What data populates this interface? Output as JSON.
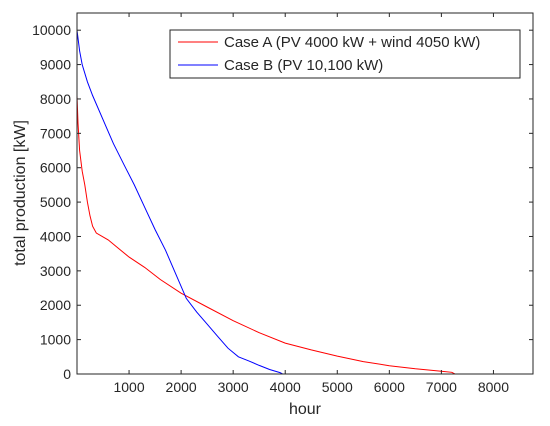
{
  "chart_data": {
    "type": "line",
    "xlabel": "hour",
    "ylabel": "total production [kW]",
    "xlim": [
      0,
      8760
    ],
    "ylim": [
      0,
      10500
    ],
    "x_ticks": [
      1000,
      2000,
      3000,
      4000,
      5000,
      6000,
      7000,
      8000
    ],
    "y_ticks": [
      0,
      1000,
      2000,
      3000,
      4000,
      5000,
      6000,
      7000,
      8000,
      9000,
      10000
    ],
    "grid": false,
    "legend_position": "top-right",
    "series": [
      {
        "name": "Case A (PV 4000 kW + wind 4050 kW)",
        "color": "#ff0000",
        "points": [
          [
            0,
            8100
          ],
          [
            20,
            7300
          ],
          [
            50,
            6500
          ],
          [
            100,
            5900
          ],
          [
            150,
            5500
          ],
          [
            200,
            5000
          ],
          [
            250,
            4600
          ],
          [
            300,
            4300
          ],
          [
            370,
            4100
          ],
          [
            600,
            3900
          ],
          [
            800,
            3650
          ],
          [
            1000,
            3400
          ],
          [
            1300,
            3100
          ],
          [
            1600,
            2750
          ],
          [
            2000,
            2350
          ],
          [
            2500,
            1950
          ],
          [
            3000,
            1550
          ],
          [
            3500,
            1200
          ],
          [
            4000,
            900
          ],
          [
            4500,
            700
          ],
          [
            5000,
            520
          ],
          [
            5500,
            360
          ],
          [
            6000,
            240
          ],
          [
            6500,
            150
          ],
          [
            7000,
            80
          ],
          [
            7200,
            50
          ],
          [
            7260,
            0
          ],
          [
            8760,
            0
          ]
        ]
      },
      {
        "name": "Case B (PV 10,100 kW)",
        "color": "#0000ff",
        "points": [
          [
            0,
            10000
          ],
          [
            50,
            9400
          ],
          [
            100,
            9000
          ],
          [
            200,
            8500
          ],
          [
            300,
            8100
          ],
          [
            500,
            7400
          ],
          [
            700,
            6700
          ],
          [
            900,
            6100
          ],
          [
            1100,
            5500
          ],
          [
            1300,
            4850
          ],
          [
            1500,
            4200
          ],
          [
            1700,
            3600
          ],
          [
            1900,
            2900
          ],
          [
            2100,
            2200
          ],
          [
            2300,
            1800
          ],
          [
            2500,
            1450
          ],
          [
            2700,
            1100
          ],
          [
            2900,
            750
          ],
          [
            3100,
            500
          ],
          [
            3300,
            380
          ],
          [
            3500,
            250
          ],
          [
            3700,
            130
          ],
          [
            3900,
            40
          ],
          [
            3950,
            0
          ],
          [
            8760,
            0
          ]
        ]
      }
    ]
  }
}
